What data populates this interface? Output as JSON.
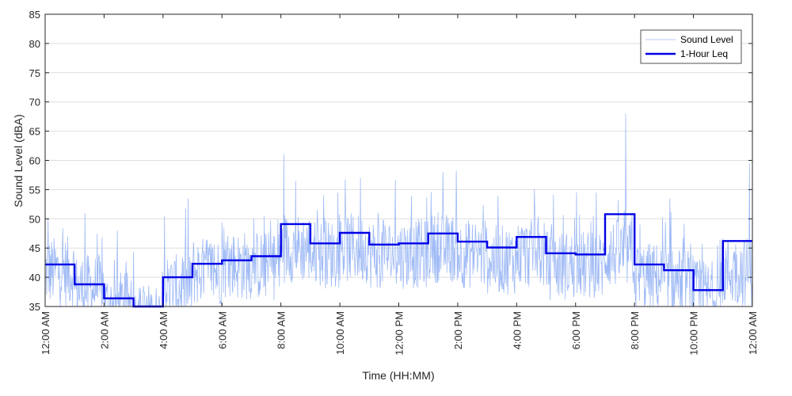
{
  "chart_data": {
    "type": "line",
    "xlabel": "Time (HH:MM)",
    "ylabel": "Sound Level (dBA)",
    "xlim": [
      0,
      24
    ],
    "ylim": [
      35,
      85
    ],
    "y_ticks": [
      35,
      40,
      45,
      50,
      55,
      60,
      65,
      70,
      75,
      80,
      85
    ],
    "x_ticks": [
      {
        "hour": 0,
        "label": "12:00 AM"
      },
      {
        "hour": 2,
        "label": "2:00 AM"
      },
      {
        "hour": 4,
        "label": "4:00 AM"
      },
      {
        "hour": 6,
        "label": "6:00 AM"
      },
      {
        "hour": 8,
        "label": "8:00 AM"
      },
      {
        "hour": 10,
        "label": "10:00 AM"
      },
      {
        "hour": 12,
        "label": "12:00 PM"
      },
      {
        "hour": 14,
        "label": "2:00 PM"
      },
      {
        "hour": 16,
        "label": "4:00 PM"
      },
      {
        "hour": 18,
        "label": "6:00 PM"
      },
      {
        "hour": 20,
        "label": "8:00 PM"
      },
      {
        "hour": 22,
        "label": "10:00 PM"
      },
      {
        "hour": 24,
        "label": "12:00 AM"
      }
    ],
    "grid": "horizontal",
    "legend_position": "top-right",
    "series": [
      {
        "name": "Sound Level",
        "style": "thin line",
        "color": "#9fbaf5",
        "hourly_baseline": [
          41,
          38,
          35,
          33,
          38,
          41,
          42,
          42,
          45,
          44,
          45,
          44,
          44,
          45,
          44,
          43,
          44,
          42,
          42,
          44,
          40,
          39,
          37,
          41
        ],
        "peaks": [
          {
            "hour": 0.1,
            "value": 50
          },
          {
            "hour": 1.35,
            "value": 51
          },
          {
            "hour": 2.45,
            "value": 48
          },
          {
            "hour": 4.05,
            "value": 50.5
          },
          {
            "hour": 4.85,
            "value": 53.5
          },
          {
            "hour": 8.1,
            "value": 61
          },
          {
            "hour": 8.5,
            "value": 56.5
          },
          {
            "hour": 10.7,
            "value": 57
          },
          {
            "hour": 13.5,
            "value": 58
          },
          {
            "hour": 16.6,
            "value": 55
          },
          {
            "hour": 19.7,
            "value": 68
          },
          {
            "hour": 21.2,
            "value": 53.5
          },
          {
            "hour": 23.9,
            "value": 59.5
          }
        ]
      },
      {
        "name": "1-Hour Leq",
        "style": "step",
        "color": "#0000e6",
        "hours": [
          0,
          1,
          2,
          3,
          4,
          5,
          6,
          7,
          8,
          9,
          10,
          11,
          12,
          13,
          14,
          15,
          16,
          17,
          18,
          19,
          20,
          21,
          22,
          23
        ],
        "values": [
          42.2,
          38.8,
          36.4,
          33.5,
          40.0,
          42.3,
          42.9,
          43.6,
          49.1,
          45.8,
          47.6,
          45.6,
          45.8,
          47.5,
          46.1,
          45.1,
          46.9,
          44.1,
          43.9,
          50.8,
          42.2,
          41.2,
          37.8,
          46.2
        ]
      }
    ]
  }
}
